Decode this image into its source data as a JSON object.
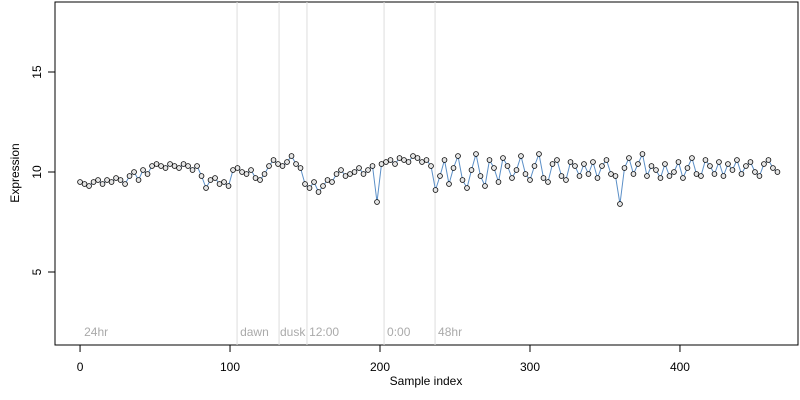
{
  "chart_data": {
    "type": "scatter",
    "xlabel": "Sample index",
    "ylabel": "Expression",
    "xlim": [
      -16.7,
      478.7
    ],
    "ylim": [
      1.35,
      18.5
    ],
    "xticks": [
      0,
      100,
      200,
      300,
      400
    ],
    "yticks": [
      5,
      10,
      15
    ],
    "vlines": [
      104.7,
      132.7,
      151.3,
      202.7,
      236.7
    ],
    "annotations": [
      {
        "x": 2.7,
        "y": 1.95,
        "label": "24hr"
      },
      {
        "x": 106.7,
        "y": 1.95,
        "label": "dawn"
      },
      {
        "x": 133.3,
        "y": 1.95,
        "label": "dusk"
      },
      {
        "x": 152.7,
        "y": 1.95,
        "label": "12:00"
      },
      {
        "x": 204.7,
        "y": 1.95,
        "label": "0:00"
      },
      {
        "x": 238.7,
        "y": 1.95,
        "label": "48hr"
      }
    ],
    "series": [
      {
        "color": "#5b8fc7",
        "point_fill": "#e6e6e6",
        "x": [
          0,
          3,
          6,
          9,
          12,
          15,
          18,
          21,
          24,
          27,
          30,
          33,
          36,
          39,
          42,
          45,
          48,
          51,
          54,
          57,
          60,
          63,
          66,
          69,
          72,
          75,
          78,
          81,
          84,
          87,
          90,
          93,
          96,
          99,
          102,
          105,
          108,
          111,
          114,
          117,
          120,
          123,
          126,
          129,
          132,
          135,
          138,
          141,
          144,
          147,
          150,
          153,
          156,
          159,
          162,
          165,
          168,
          171,
          174,
          177,
          180,
          183,
          186,
          189,
          192,
          195,
          198,
          201,
          204,
          207,
          210,
          213,
          216,
          219,
          222,
          225,
          228,
          231,
          234,
          237,
          240,
          243,
          246,
          249,
          252,
          255,
          258,
          261,
          264,
          267,
          270,
          273,
          276,
          279,
          282,
          285,
          288,
          291,
          294,
          297,
          300,
          303,
          306,
          309,
          312,
          315,
          318,
          321,
          324,
          327,
          330,
          333,
          336,
          339,
          342,
          345,
          348,
          351,
          354,
          357,
          360,
          363,
          366,
          369,
          372,
          375,
          378,
          381,
          384,
          387,
          390,
          393,
          396,
          399,
          402,
          405,
          408,
          411,
          414,
          417,
          420,
          423,
          426,
          429,
          432,
          435,
          438,
          441,
          444,
          447,
          450,
          453,
          456,
          459,
          462,
          465
        ],
        "values": [
          9.5,
          9.4,
          9.3,
          9.5,
          9.6,
          9.4,
          9.6,
          9.5,
          9.7,
          9.6,
          9.4,
          9.8,
          10.0,
          9.6,
          10.1,
          9.9,
          10.3,
          10.4,
          10.3,
          10.2,
          10.4,
          10.3,
          10.2,
          10.4,
          10.3,
          10.1,
          10.3,
          9.8,
          9.2,
          9.6,
          9.7,
          9.4,
          9.5,
          9.3,
          10.1,
          10.2,
          10.0,
          9.9,
          10.1,
          9.7,
          9.6,
          9.9,
          10.3,
          10.6,
          10.4,
          10.3,
          10.5,
          10.8,
          10.4,
          10.2,
          9.4,
          9.2,
          9.5,
          9.0,
          9.3,
          9.6,
          9.5,
          9.9,
          10.1,
          9.8,
          9.9,
          10.0,
          10.2,
          9.9,
          10.1,
          10.3,
          8.5,
          10.4,
          10.5,
          10.6,
          10.4,
          10.7,
          10.6,
          10.5,
          10.8,
          10.7,
          10.5,
          10.6,
          10.3,
          9.1,
          9.8,
          10.6,
          9.4,
          10.2,
          10.8,
          9.6,
          9.2,
          10.1,
          10.9,
          9.8,
          9.3,
          10.6,
          10.2,
          9.5,
          10.7,
          10.3,
          9.7,
          10.1,
          10.8,
          9.9,
          9.6,
          10.3,
          10.9,
          9.7,
          9.5,
          10.4,
          10.6,
          9.8,
          9.6,
          10.5,
          10.3,
          9.8,
          10.4,
          9.9,
          10.5,
          9.7,
          10.3,
          10.6,
          9.9,
          9.8,
          8.4,
          10.2,
          10.7,
          9.9,
          10.4,
          10.9,
          9.8,
          10.3,
          10.1,
          9.7,
          10.4,
          9.8,
          10.0,
          10.5,
          9.7,
          10.2,
          10.7,
          9.9,
          9.8,
          10.6,
          10.3,
          9.9,
          10.5,
          9.8,
          10.4,
          10.1,
          10.6,
          9.9,
          10.3,
          10.5,
          10.0,
          9.8,
          10.4,
          10.6,
          10.2,
          10.0
        ]
      }
    ]
  }
}
